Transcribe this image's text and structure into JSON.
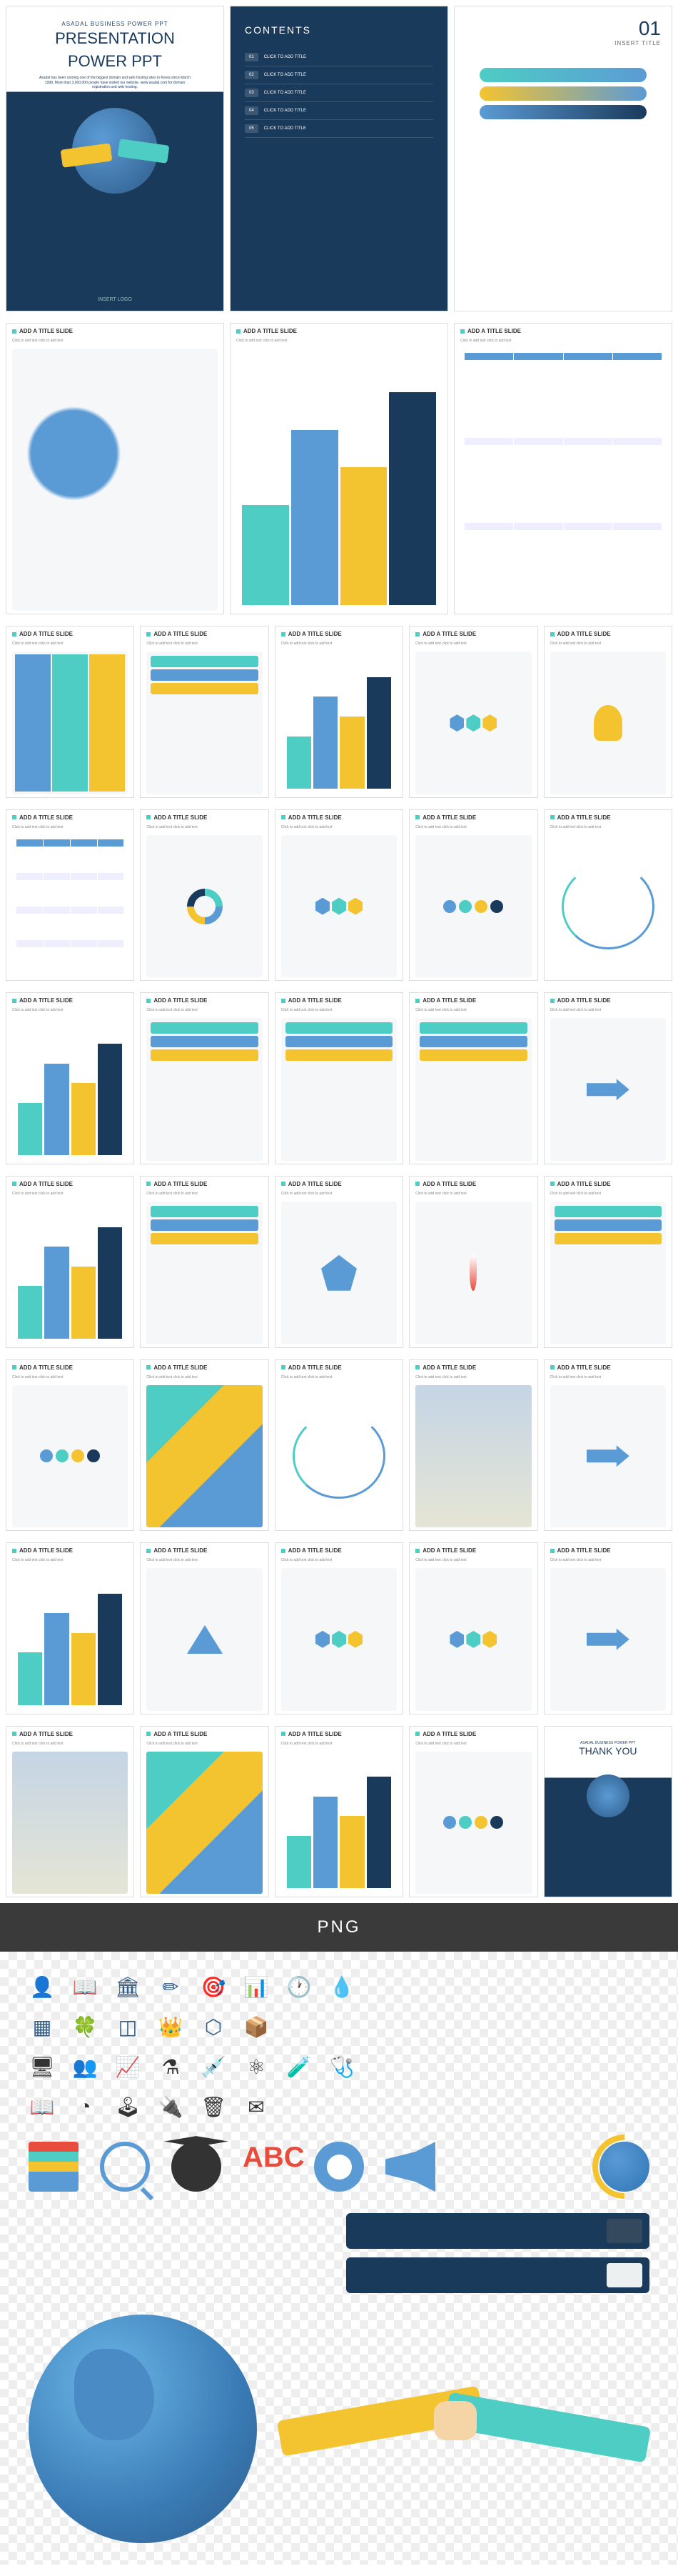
{
  "cover": {
    "subtitle": "ASADAL BUSINESS POWER PPT",
    "title1": "PRESENTATION",
    "title2": "POWER PPT",
    "desc": "Asadal has been running one of the biggest domain and web hosting sites in Korea since March 1998. More than 3,000,000 people have visited our website. www.asadal.com for domain registration and web hosting.",
    "logo": "INSERT LOGO"
  },
  "contents": {
    "title": "CONTENTS",
    "items": [
      {
        "num": "01",
        "label": "CLICK TO ADD TITLE"
      },
      {
        "num": "02",
        "label": "CLICK TO ADD TITLE"
      },
      {
        "num": "03",
        "label": "CLICK TO ADD TITLE"
      },
      {
        "num": "04",
        "label": "CLICK TO ADD TITLE"
      },
      {
        "num": "05",
        "label": "CLICK TO ADD TITLE"
      }
    ]
  },
  "section": {
    "num": "01",
    "label": "INSERT TITLE"
  },
  "std_title": "ADD A TITLE SLIDE",
  "std_sub": "Click to add text click to add text",
  "thank": {
    "sub": "ASADAL BUSINESS POWER PPT",
    "title": "THANK YOU"
  },
  "png_label": "PNG",
  "palette": {
    "navy": "#1a3a5c",
    "blue": "#5b9bd5",
    "teal": "#4ecdc4",
    "yellow": "#f4c430",
    "dark": "#333333",
    "white": "#ffffff"
  },
  "thumbs_row1": [
    "globe",
    "bars",
    "orgchart"
  ],
  "thumbs_grid": [
    [
      "cols",
      "rows",
      "bars",
      "hex",
      "bulb"
    ],
    [
      "table",
      "circle",
      "hex",
      "dots",
      "curve"
    ],
    [
      "bars",
      "rows",
      "rows",
      "rows",
      "arrow"
    ],
    [
      "bars",
      "rows",
      "penta",
      "therm",
      "rows"
    ],
    [
      "dots",
      "map",
      "curve",
      "img",
      "arrow"
    ],
    [
      "bars",
      "tri",
      "hex",
      "hex",
      "arrow"
    ],
    [
      "img",
      "map",
      "bars",
      "dots",
      "thank"
    ]
  ],
  "icon_rows": [
    [
      "👤",
      "📖",
      "🏛",
      "✏",
      "🎯",
      "📊",
      "🕐",
      "💧"
    ],
    [
      "▦",
      "🍀",
      "◫",
      "👑",
      "⬡",
      "📦"
    ],
    [
      "🖥",
      "👥",
      "📈",
      "⚗",
      "💉",
      "⚛",
      "🧪",
      "🩺"
    ],
    [
      "📖",
      "◔",
      "🕹",
      "🔌",
      "🗑",
      "✉"
    ]
  ],
  "abc": "ABC"
}
